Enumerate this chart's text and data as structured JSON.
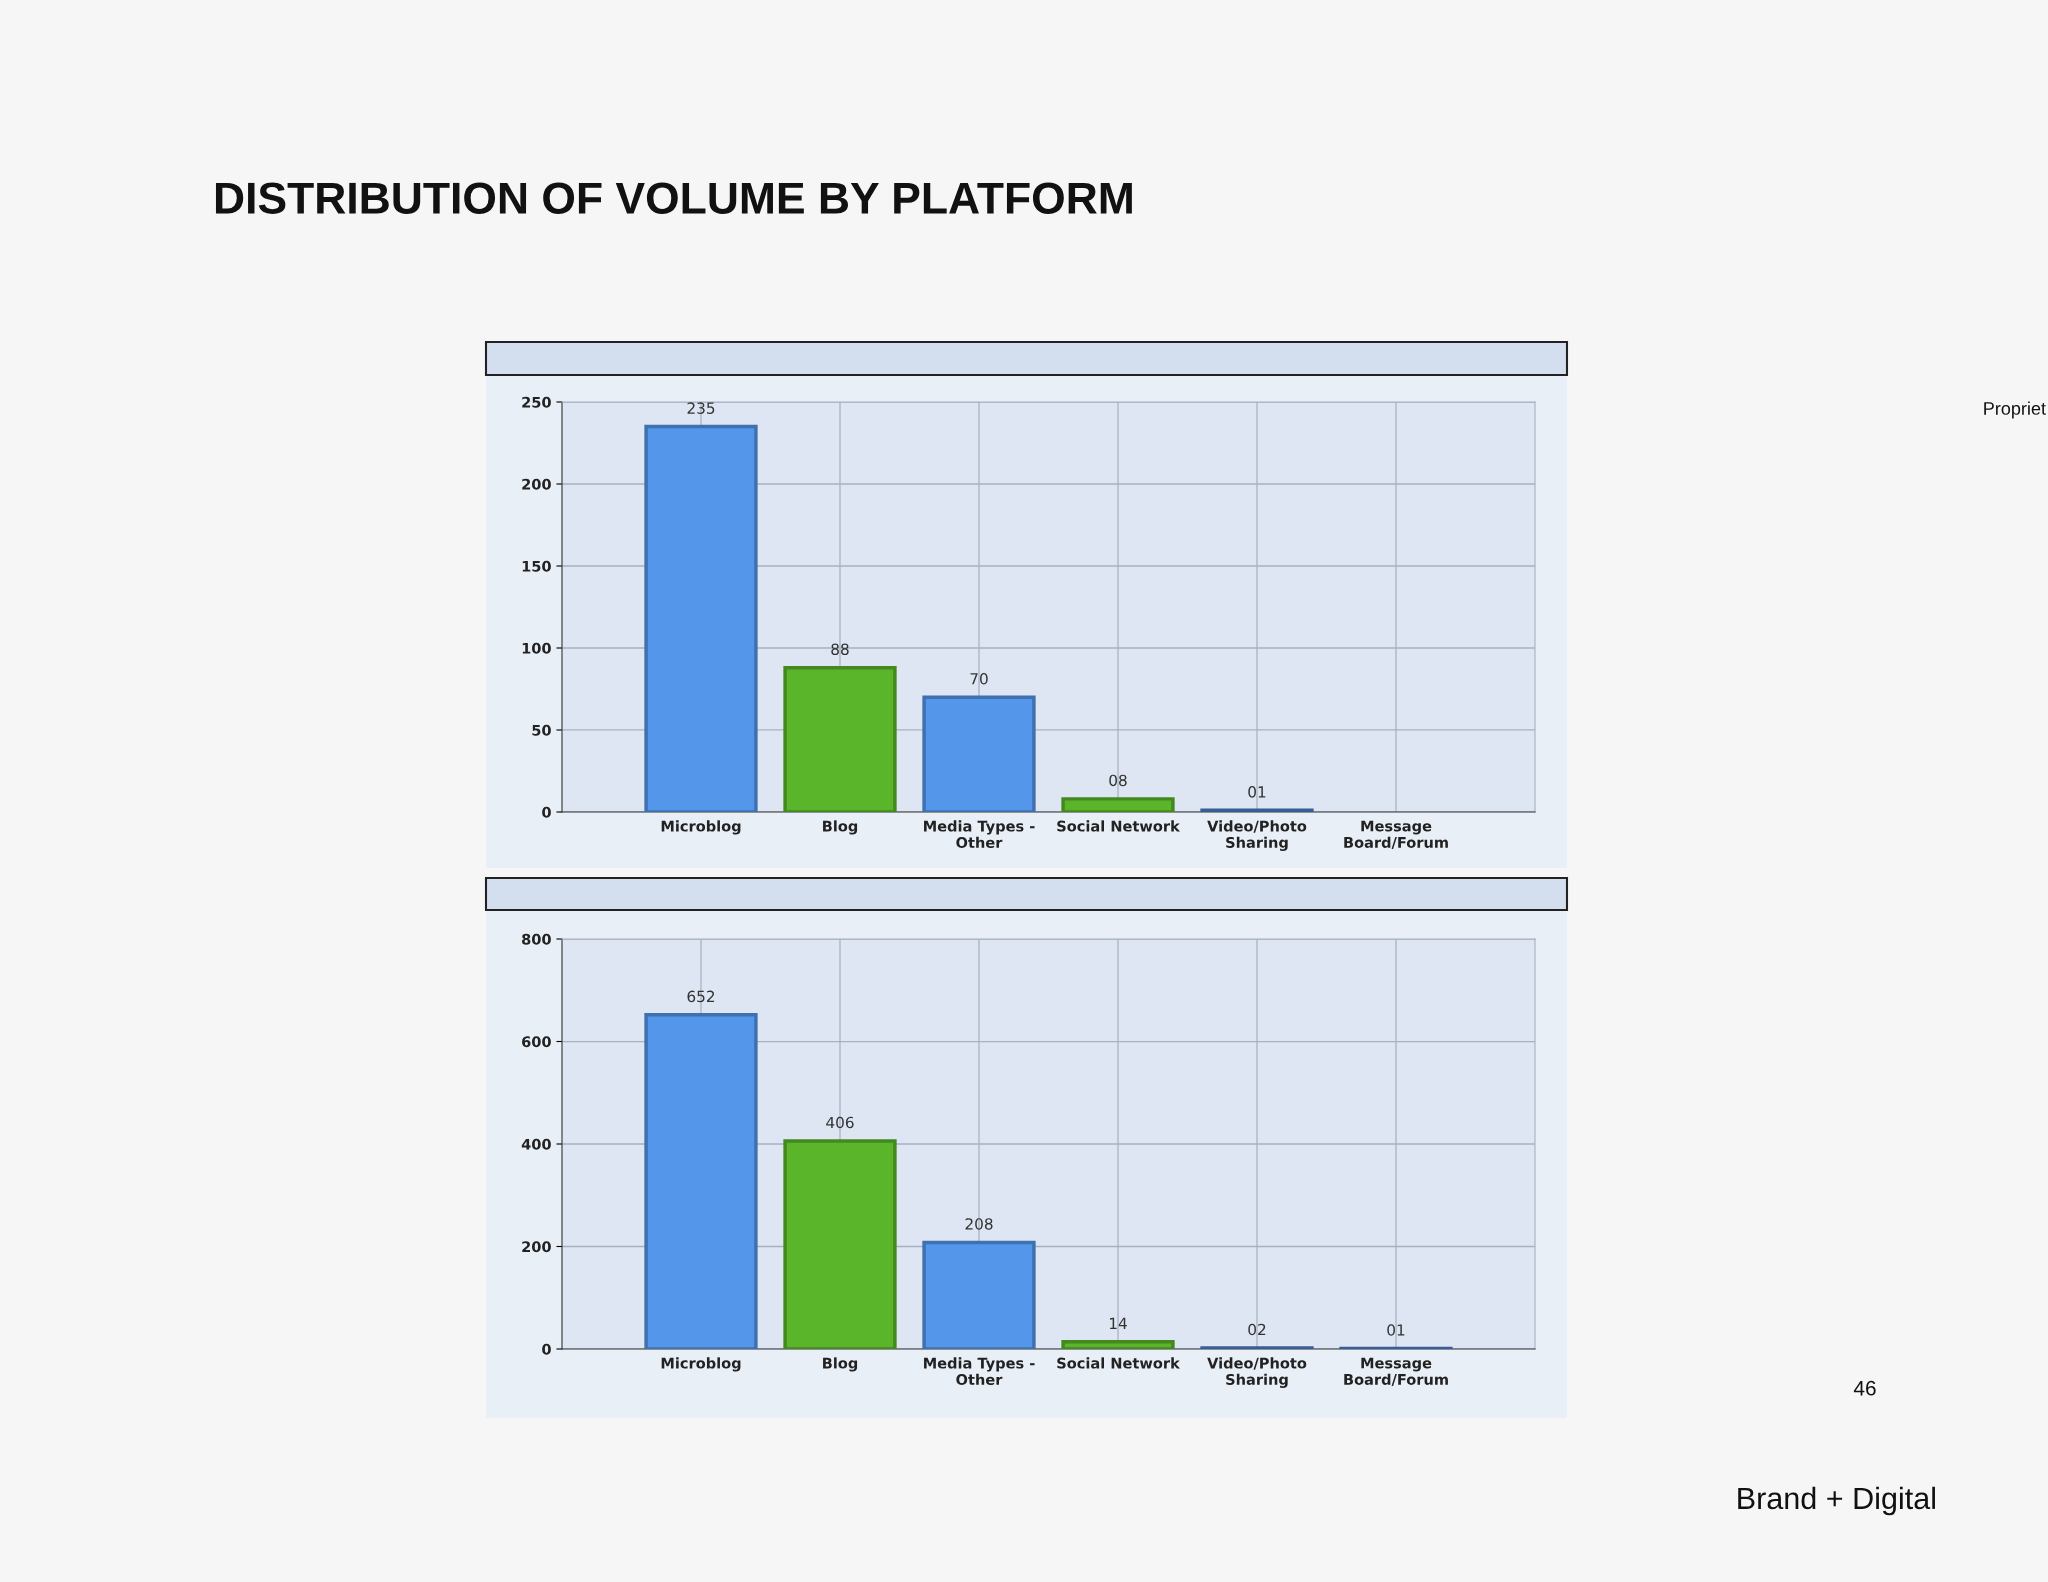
{
  "chart_data": [
    {
      "type": "bar",
      "title": "DISTRIBUTION OF VOLUME BY PLATFORM",
      "categories": [
        "Microblog",
        "Blog",
        "Media Types -\nOther",
        "Social Network",
        "Video/Photo\nSharing",
        "Message\nBoard/Forum"
      ],
      "values": [
        235,
        88,
        70,
        8,
        1,
        null
      ],
      "value_labels": [
        "235",
        "88",
        "70",
        "08",
        "01",
        null
      ],
      "colors": [
        "#5497ea",
        "#5ab52a",
        "#5497ea",
        "#5ab52a",
        "#4a7cc9",
        "#4a7cc9"
      ],
      "ylim": [
        0,
        250
      ],
      "yticks": [
        0,
        50,
        100,
        150,
        200,
        250
      ],
      "grid": true,
      "annotations": [
        "Propriet"
      ]
    },
    {
      "type": "bar",
      "categories": [
        "Microblog",
        "Blog",
        "Media Types -\nOther",
        "Social Network",
        "Video/Photo\nSharing",
        "Message\nBoard/Forum"
      ],
      "values": [
        652,
        406,
        208,
        14,
        2,
        1
      ],
      "value_labels": [
        "652",
        "406",
        "208",
        "14",
        "02",
        "01"
      ],
      "colors": [
        "#5497ea",
        "#5ab52a",
        "#5497ea",
        "#5ab52a",
        "#4a7cc9",
        "#4a7cc9"
      ],
      "ylim": [
        0,
        800
      ],
      "yticks": [
        0,
        200,
        400,
        600,
        800
      ],
      "grid": true,
      "annotations": [
        "46",
        "Brand + Digital"
      ]
    }
  ]
}
